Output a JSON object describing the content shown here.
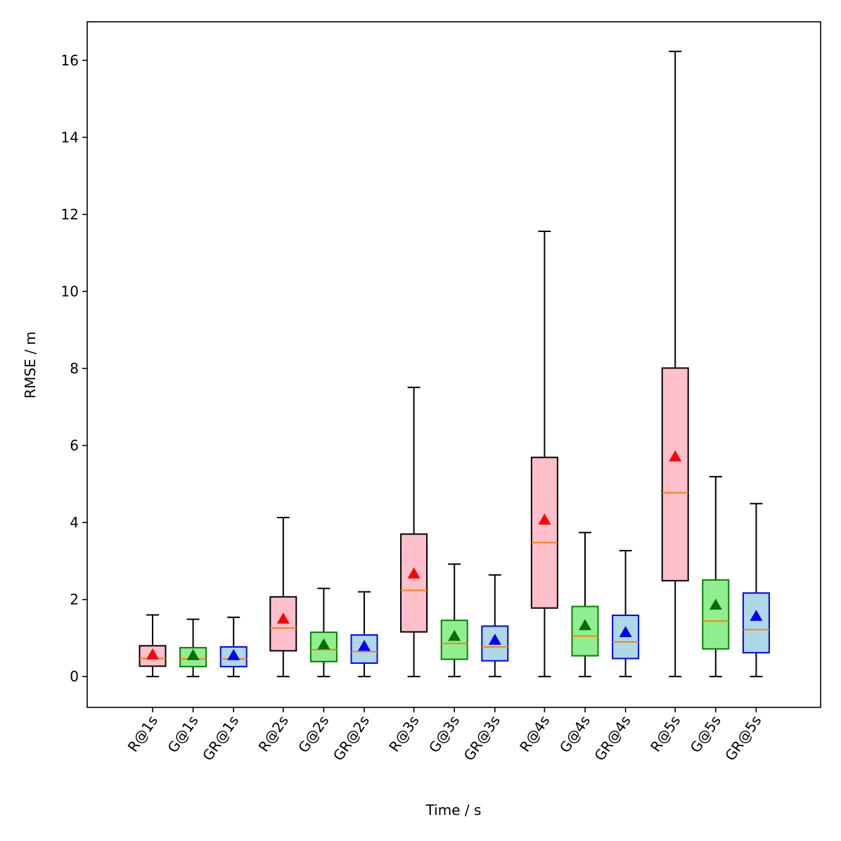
{
  "chart_data": {
    "type": "box",
    "title": "",
    "xlabel": "Time / s",
    "ylabel": "RMSE / m",
    "ylim": [
      -0.8,
      17.0
    ],
    "yticks": [
      0,
      2,
      4,
      6,
      8,
      10,
      12,
      14,
      16
    ],
    "ytick_labels": [
      "0",
      "2",
      "4",
      "6",
      "8",
      "10",
      "12",
      "14",
      "16"
    ],
    "categories": [
      "R@1s",
      "G@1s",
      "GR@1s",
      "R@2s",
      "G@2s",
      "GR@2s",
      "R@3s",
      "G@3s",
      "GR@3s",
      "R@4s",
      "G@4s",
      "GR@4s",
      "R@5s",
      "G@5s",
      "GR@5s"
    ],
    "series_colors": {
      "R": {
        "fill": "#ffc0cb",
        "edge": "#000000",
        "mean": "#ff0000"
      },
      "G": {
        "fill": "#90ee90",
        "edge": "#008000",
        "mean": "#007000"
      },
      "GR": {
        "fill": "#add8e6",
        "edge": "#0000ff",
        "mean": "#0000ff"
      }
    },
    "median_color": "#ff7f0e",
    "boxes": [
      {
        "label": "R@1s",
        "group": "R",
        "whislo": 0,
        "q1": 0.27,
        "median": 0.47,
        "q3": 0.8,
        "whishi": 1.6,
        "mean": 0.57
      },
      {
        "label": "G@1s",
        "group": "G",
        "whislo": 0,
        "q1": 0.26,
        "median": 0.46,
        "q3": 0.75,
        "whishi": 1.49,
        "mean": 0.55
      },
      {
        "label": "GR@1s",
        "group": "GR",
        "whislo": 0,
        "q1": 0.26,
        "median": 0.46,
        "q3": 0.77,
        "whishi": 1.54,
        "mean": 0.55
      },
      {
        "label": "R@2s",
        "group": "R",
        "whislo": 0,
        "q1": 0.67,
        "median": 1.26,
        "q3": 2.07,
        "whishi": 4.13,
        "mean": 1.5
      },
      {
        "label": "G@2s",
        "group": "G",
        "whislo": 0,
        "q1": 0.39,
        "median": 0.7,
        "q3": 1.15,
        "whishi": 2.29,
        "mean": 0.83
      },
      {
        "label": "GR@2s",
        "group": "GR",
        "whislo": 0,
        "q1": 0.35,
        "median": 0.65,
        "q3": 1.08,
        "whishi": 2.2,
        "mean": 0.79
      },
      {
        "label": "R@3s",
        "group": "R",
        "whislo": 0,
        "q1": 1.16,
        "median": 2.24,
        "q3": 3.7,
        "whishi": 7.51,
        "mean": 2.67
      },
      {
        "label": "G@3s",
        "group": "G",
        "whislo": 0,
        "q1": 0.45,
        "median": 0.86,
        "q3": 1.46,
        "whishi": 2.92,
        "mean": 1.05
      },
      {
        "label": "GR@3s",
        "group": "GR",
        "whislo": 0,
        "q1": 0.41,
        "median": 0.77,
        "q3": 1.31,
        "whishi": 2.64,
        "mean": 0.95
      },
      {
        "label": "R@4s",
        "group": "R",
        "whislo": 0,
        "q1": 1.78,
        "median": 3.48,
        "q3": 5.69,
        "whishi": 11.56,
        "mean": 4.07
      },
      {
        "label": "G@4s",
        "group": "G",
        "whislo": 0,
        "q1": 0.54,
        "median": 1.05,
        "q3": 1.82,
        "whishi": 3.74,
        "mean": 1.33
      },
      {
        "label": "GR@4s",
        "group": "GR",
        "whislo": 0,
        "q1": 0.47,
        "median": 0.9,
        "q3": 1.59,
        "whishi": 3.27,
        "mean": 1.15
      },
      {
        "label": "R@5s",
        "group": "R",
        "whislo": 0,
        "q1": 2.49,
        "median": 4.77,
        "q3": 8.01,
        "whishi": 16.23,
        "mean": 5.71
      },
      {
        "label": "G@5s",
        "group": "G",
        "whislo": 0,
        "q1": 0.72,
        "median": 1.44,
        "q3": 2.51,
        "whishi": 5.19,
        "mean": 1.86
      },
      {
        "label": "GR@5s",
        "group": "GR",
        "whislo": 0,
        "q1": 0.62,
        "median": 1.22,
        "q3": 2.17,
        "whishi": 4.49,
        "mean": 1.57
      }
    ]
  }
}
